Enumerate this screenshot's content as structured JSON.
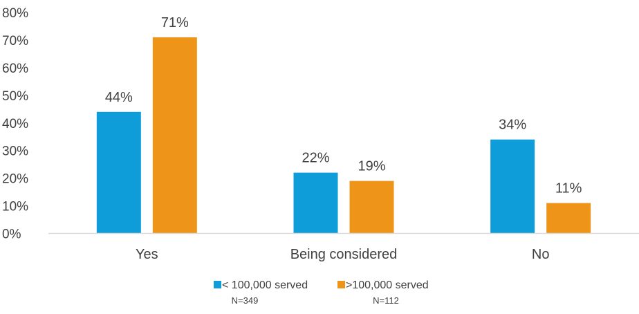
{
  "chart_data": {
    "type": "bar",
    "categories": [
      "Yes",
      "Being considered",
      "No"
    ],
    "series": [
      {
        "name": "< 100,000 served",
        "note": "N=349",
        "values": [
          44,
          22,
          34
        ],
        "labels": [
          "44%",
          "22%",
          "34%"
        ],
        "color": "#0e9dd9"
      },
      {
        "name": ">100,000 served",
        "note": "N=112",
        "values": [
          71,
          19,
          11
        ],
        "labels": [
          "71%",
          "19%",
          "11%"
        ],
        "color": "#ee9418"
      }
    ],
    "ylim": [
      0,
      80
    ],
    "yticks": [
      0,
      10,
      20,
      30,
      40,
      50,
      60,
      70,
      80
    ],
    "ytick_labels": [
      "0%",
      "10%",
      "20%",
      "30%",
      "40%",
      "50%",
      "60%",
      "70%",
      "80%"
    ],
    "grid": false,
    "legend_position": "bottom",
    "axis_color": "#d9d9d9"
  }
}
